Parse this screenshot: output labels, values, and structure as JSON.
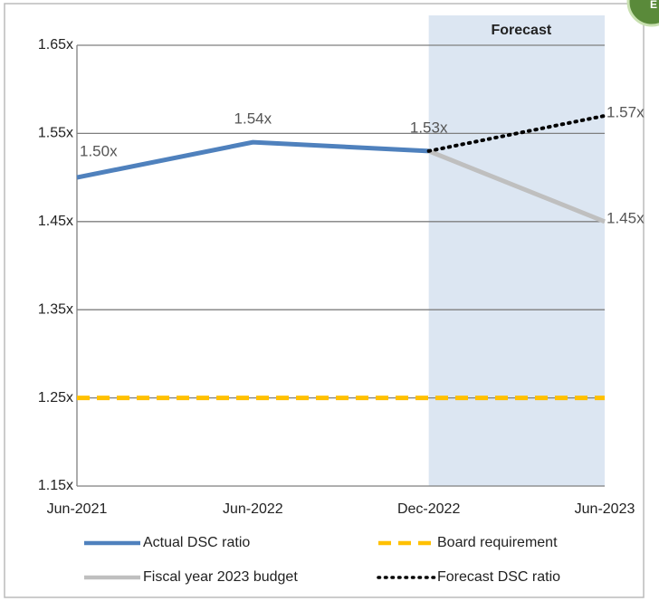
{
  "chart_data": {
    "type": "line",
    "badge": "E",
    "categories": [
      "Jun-2021",
      "Jun-2022",
      "Dec-2022",
      "Jun-2023"
    ],
    "series": [
      {
        "name": "Actual DSC ratio",
        "color": "#4f81bd",
        "style": "solid",
        "values": [
          1.5,
          1.54,
          1.53,
          null
        ],
        "value_labels": [
          "1.50x",
          "1.54x",
          "1.53x",
          null
        ]
      },
      {
        "name": "Board requirement",
        "color": "#ffc000",
        "style": "dashed",
        "values": [
          1.25,
          1.25,
          1.25,
          1.25
        ]
      },
      {
        "name": "Fiscal year 2023 budget",
        "color": "#bfbfbf",
        "style": "solid",
        "values": [
          null,
          null,
          1.53,
          1.45
        ],
        "value_labels": [
          null,
          null,
          null,
          "1.45x"
        ]
      },
      {
        "name": "Forecast DSC ratio",
        "color": "#000000",
        "style": "dotted",
        "values": [
          null,
          null,
          1.53,
          1.57
        ],
        "value_labels": [
          null,
          null,
          null,
          "1.57x"
        ]
      }
    ],
    "ylim": [
      1.15,
      1.65
    ],
    "yticks": [
      {
        "value": 1.15,
        "label": "1.15x"
      },
      {
        "value": 1.25,
        "label": "1.25x"
      },
      {
        "value": 1.35,
        "label": "1.35x"
      },
      {
        "value": 1.45,
        "label": "1.45x"
      },
      {
        "value": 1.55,
        "label": "1.55x"
      },
      {
        "value": 1.65,
        "label": "1.65x"
      }
    ],
    "grid": true,
    "shaded_region": {
      "label": "Forecast",
      "start": "Dec-2022",
      "end": "Jun-2023",
      "color": "#dce6f2"
    },
    "legend": "bottom"
  }
}
